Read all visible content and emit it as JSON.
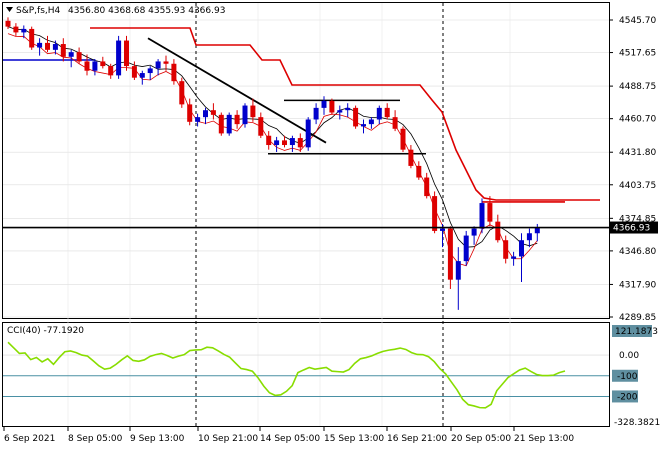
{
  "header": {
    "symbol": "S&P,fs,H4",
    "ohlc": "4356.80 4368.68 4355.93 4366.93"
  },
  "indicator": {
    "label": "CCI(40) -77.1920",
    "max_label": "121.1873",
    "min_label": "-328.3821"
  },
  "current_price_label": "4366.93",
  "colors": {
    "bull": "#0000cc",
    "bear": "#dd0000",
    "envelope": "#dd0000",
    "cci": "#88dd00",
    "cci_level": "#4a90a4",
    "sma": "#000000"
  },
  "chart_data": {
    "type": "candlestick",
    "price_axis": {
      "ticks": [
        "4545.70",
        "4517.65",
        "4488.75",
        "4460.70",
        "4431.80",
        "4403.75",
        "4374.85",
        "4346.80",
        "4317.90",
        "4289.85"
      ],
      "ylim": [
        4289.85,
        4552
      ]
    },
    "cci_axis": {
      "ticks": [
        "121.1873",
        "0.00",
        "-100",
        "-200",
        "-328.3821"
      ],
      "ylim": [
        -328.3821,
        121.1873
      ]
    },
    "time_axis": [
      "6 Sep 2021",
      "8 Sep 05:00",
      "9 Sep 13:00",
      "10 Sep 21:00",
      "14 Sep 05:00",
      "15 Sep 13:00",
      "16 Sep 21:00",
      "20 Sep 05:00",
      "21 Sep 13:00"
    ],
    "current_price": 4366.93,
    "candles": [
      [
        4545,
        4548,
        4538,
        4540
      ],
      [
        4540,
        4543,
        4532,
        4535
      ],
      [
        4535,
        4541,
        4530,
        4538
      ],
      [
        4538,
        4540,
        4520,
        4522
      ],
      [
        4522,
        4530,
        4515,
        4526
      ],
      [
        4526,
        4532,
        4518,
        4520
      ],
      [
        4520,
        4528,
        4516,
        4525
      ],
      [
        4525,
        4530,
        4510,
        4514
      ],
      [
        4514,
        4520,
        4505,
        4518
      ],
      [
        4518,
        4522,
        4508,
        4510
      ],
      [
        4510,
        4516,
        4498,
        4502
      ],
      [
        4502,
        4512,
        4498,
        4510
      ],
      [
        4510,
        4514,
        4504,
        4506
      ],
      [
        4506,
        4508,
        4495,
        4498
      ],
      [
        4498,
        4532,
        4495,
        4528
      ],
      [
        4528,
        4532,
        4502,
        4506
      ],
      [
        4506,
        4510,
        4494,
        4496
      ],
      [
        4496,
        4502,
        4490,
        4500
      ],
      [
        4500,
        4506,
        4494,
        4504
      ],
      [
        4504,
        4512,
        4498,
        4510
      ],
      [
        4510,
        4515,
        4502,
        4508
      ],
      [
        4508,
        4512,
        4490,
        4493
      ],
      [
        4493,
        4496,
        4470,
        4473
      ],
      [
        4473,
        4478,
        4455,
        4458
      ],
      [
        4458,
        4465,
        4454,
        4462
      ],
      [
        4462,
        4470,
        4456,
        4468
      ],
      [
        4468,
        4474,
        4460,
        4464
      ],
      [
        4464,
        4466,
        4446,
        4448
      ],
      [
        4448,
        4466,
        4446,
        4464
      ],
      [
        4464,
        4468,
        4452,
        4456
      ],
      [
        4456,
        4474,
        4453,
        4472
      ],
      [
        4472,
        4478,
        4458,
        4462
      ],
      [
        4462,
        4466,
        4444,
        4446
      ],
      [
        4446,
        4450,
        4434,
        4438
      ],
      [
        4438,
        4445,
        4432,
        4442
      ],
      [
        4442,
        4446,
        4436,
        4438
      ],
      [
        4438,
        4446,
        4432,
        4444
      ],
      [
        4444,
        4448,
        4432,
        4436
      ],
      [
        4436,
        4462,
        4433,
        4460
      ],
      [
        4460,
        4474,
        4456,
        4470
      ],
      [
        4470,
        4480,
        4464,
        4476
      ],
      [
        4476,
        4478,
        4464,
        4466
      ],
      [
        4466,
        4472,
        4460,
        4468
      ],
      [
        4468,
        4474,
        4462,
        4470
      ],
      [
        4470,
        4472,
        4452,
        4454
      ],
      [
        4454,
        4460,
        4448,
        4456
      ],
      [
        4456,
        4462,
        4452,
        4460
      ],
      [
        4460,
        4472,
        4456,
        4470
      ],
      [
        4470,
        4474,
        4460,
        4462
      ],
      [
        4462,
        4468,
        4450,
        4452
      ],
      [
        4452,
        4454,
        4432,
        4434
      ],
      [
        4434,
        4438,
        4418,
        4420
      ],
      [
        4420,
        4424,
        4408,
        4410
      ],
      [
        4410,
        4414,
        4392,
        4394
      ],
      [
        4394,
        4398,
        4362,
        4364
      ],
      [
        4364,
        4370,
        4350,
        4366
      ],
      [
        4366,
        4368,
        4314,
        4322
      ],
      [
        4322,
        4350,
        4296,
        4338
      ],
      [
        4338,
        4364,
        4334,
        4360
      ],
      [
        4360,
        4368,
        4352,
        4366
      ],
      [
        4366,
        4392,
        4362,
        4388
      ],
      [
        4388,
        4394,
        4368,
        4372
      ],
      [
        4372,
        4378,
        4354,
        4356
      ],
      [
        4356,
        4360,
        4336,
        4340
      ],
      [
        4340,
        4346,
        4334,
        4342
      ],
      [
        4342,
        4362,
        4320,
        4356
      ],
      [
        4356,
        4366,
        4350,
        4362
      ],
      [
        4362,
        4370,
        4355,
        4367
      ]
    ],
    "trendline": [
      [
        4532,
        18
      ],
      [
        4446,
        43
      ]
    ],
    "sideways_top": [
      4476.5,
      [
        36,
        50
      ]
    ],
    "sideways_bottom": [
      4430.5,
      [
        33,
        51
      ]
    ],
    "short_resistance": [
      4390,
      [
        60,
        69
      ]
    ],
    "cci_values": [
      62,
      35,
      8,
      10,
      -22,
      -12,
      -33,
      -18,
      -45,
      -12,
      16,
      20,
      12,
      0,
      -5,
      -28,
      -52,
      -68,
      -63,
      -45,
      -23,
      -4,
      -26,
      -30,
      -23,
      -6,
      2,
      8,
      -2,
      -14,
      -5,
      2,
      22,
      25,
      26,
      38,
      35,
      20,
      3,
      -10,
      -38,
      -65,
      -70,
      -78,
      -110,
      -150,
      -182,
      -195,
      -192,
      -175,
      -148,
      -85,
      -72,
      -60,
      -68,
      -64,
      -60,
      -78,
      -80,
      -82,
      -70,
      -40,
      -18,
      -12,
      -4,
      8,
      18,
      24,
      28,
      34,
      27,
      12,
      3,
      2,
      -8,
      -32,
      -66,
      -91,
      -130,
      -168,
      -214,
      -240,
      -246,
      -254,
      -255,
      -238,
      -172,
      -140,
      -108,
      -90,
      -72,
      -63,
      -79,
      -94,
      -99,
      -99,
      -97,
      -85,
      -77
    ]
  }
}
